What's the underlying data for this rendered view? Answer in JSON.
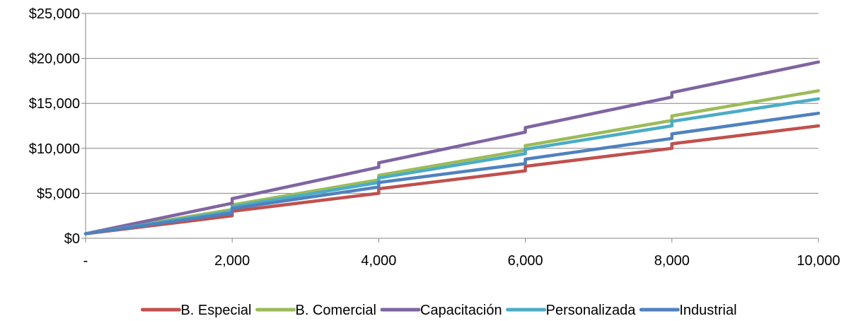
{
  "chart_data": {
    "type": "line",
    "title": "",
    "xlabel": "",
    "ylabel": "",
    "xlim": [
      0,
      10000
    ],
    "ylim": [
      0,
      25000
    ],
    "x_ticks": [
      {
        "value": 0,
        "label": "-"
      },
      {
        "value": 2000,
        "label": "2,000"
      },
      {
        "value": 4000,
        "label": "4,000"
      },
      {
        "value": 6000,
        "label": "6,000"
      },
      {
        "value": 8000,
        "label": "8,000"
      },
      {
        "value": 10000,
        "label": "10,000"
      }
    ],
    "y_ticks": [
      {
        "value": 0,
        "label": "$0"
      },
      {
        "value": 5000,
        "label": "$5,000"
      },
      {
        "value": 10000,
        "label": "$10,000"
      },
      {
        "value": 15000,
        "label": "$15,000"
      },
      {
        "value": 20000,
        "label": "$20,000"
      },
      {
        "value": 25000,
        "label": "$25,000"
      }
    ],
    "grid": "horizontal",
    "legend_position": "bottom",
    "series": [
      {
        "name": "B. Especial",
        "color": "#C0504D",
        "points": [
          [
            0,
            500
          ],
          [
            2000,
            2500
          ],
          [
            2000,
            3000
          ],
          [
            4000,
            5000
          ],
          [
            4000,
            5500
          ],
          [
            6000,
            7500
          ],
          [
            6000,
            8000
          ],
          [
            8000,
            10000
          ],
          [
            8000,
            10500
          ],
          [
            10000,
            12500
          ]
        ]
      },
      {
        "name": "B. Comercial",
        "color": "#9BBB59",
        "points": [
          [
            0,
            500
          ],
          [
            2000,
            3200
          ],
          [
            2000,
            3700
          ],
          [
            4000,
            6500
          ],
          [
            4000,
            7000
          ],
          [
            6000,
            9800
          ],
          [
            6000,
            10300
          ],
          [
            8000,
            13100
          ],
          [
            8000,
            13600
          ],
          [
            10000,
            16400
          ]
        ]
      },
      {
        "name": "Capacitación",
        "color": "#8064A2",
        "points": [
          [
            0,
            500
          ],
          [
            2000,
            3900
          ],
          [
            2000,
            4400
          ],
          [
            4000,
            7900
          ],
          [
            4000,
            8400
          ],
          [
            6000,
            11800
          ],
          [
            6000,
            12300
          ],
          [
            8000,
            15700
          ],
          [
            8000,
            16200
          ],
          [
            10000,
            19600
          ]
        ]
      },
      {
        "name": "Personalizada",
        "color": "#4BACC6",
        "points": [
          [
            0,
            500
          ],
          [
            2000,
            3000
          ],
          [
            2000,
            3500
          ],
          [
            4000,
            6200
          ],
          [
            4000,
            6700
          ],
          [
            6000,
            9400
          ],
          [
            6000,
            9900
          ],
          [
            8000,
            12500
          ],
          [
            8000,
            13000
          ],
          [
            10000,
            15500
          ]
        ]
      },
      {
        "name": "Industrial",
        "color": "#4F81BD",
        "points": [
          [
            0,
            500
          ],
          [
            2000,
            2800
          ],
          [
            2000,
            3300
          ],
          [
            4000,
            5700
          ],
          [
            4000,
            6200
          ],
          [
            6000,
            8300
          ],
          [
            6000,
            8800
          ],
          [
            8000,
            11100
          ],
          [
            8000,
            11600
          ],
          [
            10000,
            13900
          ]
        ]
      }
    ]
  }
}
